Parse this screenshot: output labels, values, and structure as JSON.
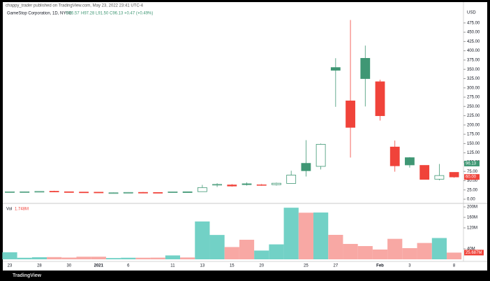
{
  "header": {
    "publisher": "chappy_trader published on TradingView.com, May 23, 2022 23:41 UTC-4"
  },
  "footer": {
    "brand": "TradingView"
  },
  "chart_data": {
    "type": "candlestick",
    "title": "GameStop Corporation, 1D, NYSE",
    "legend": {
      "o": "O96.57",
      "h": "H97.28",
      "l": "L91.50",
      "c": "C96.13",
      "change": "+0.47 (+0.49%)"
    },
    "currency": "USD",
    "categories": [
      "23",
      null,
      "28",
      null,
      "30",
      null,
      "2021",
      null,
      "6",
      null,
      null,
      "11",
      null,
      "13",
      null,
      "15",
      null,
      "20",
      null,
      null,
      "25",
      null,
      "27",
      null,
      null,
      "Feb",
      null,
      "3",
      null,
      null,
      "8"
    ],
    "open": [
      19.2,
      20.1,
      20.5,
      21.5,
      20.1,
      19.3,
      19.0,
      17.35,
      17.34,
      18.47,
      18.18,
      19.41,
      19.96,
      20.42,
      38.49,
      38.49,
      41.55,
      37.37,
      39.23,
      42.59,
      96.73,
      88.56,
      354.83,
      265.0,
      379.71,
      316.56,
      140.76,
      112.01,
      91.19,
      54.04,
      72.41
    ],
    "high": [
      20.6,
      20.8,
      21.3,
      22.9,
      20.6,
      19.7,
      19.1,
      18.08,
      18.98,
      19.45,
      18.3,
      20.65,
      20.4,
      38.65,
      43.06,
      40.75,
      45.52,
      41.19,
      44.75,
      76.76,
      159.18,
      150.0,
      380.0,
      483.0,
      413.98,
      322.0,
      158.0,
      113.4,
      91.5,
      95.0,
      72.66
    ],
    "low": [
      18.4,
      19.5,
      19.8,
      20.1,
      19.1,
      18.6,
      17.15,
      17.23,
      17.33,
      18.02,
      17.08,
      19.01,
      19.32,
      20.03,
      33.05,
      34.01,
      36.64,
      36.06,
      37.0,
      42.32,
      61.13,
      80.2,
      249.0,
      112.25,
      250.0,
      212.0,
      74.22,
      85.25,
      53.33,
      51.09,
      58.02
    ],
    "close": [
      20.1,
      20.15,
      20.99,
      20.4,
      19.38,
      18.84,
      17.25,
      17.37,
      18.36,
      18.08,
      17.69,
      19.94,
      19.95,
      31.4,
      39.91,
      35.5,
      39.36,
      39.12,
      43.03,
      65.01,
      76.79,
      147.98,
      347.51,
      193.6,
      325.0,
      225.0,
      90.0,
      92.41,
      53.5,
      63.77,
      60.0
    ],
    "volume": [
      27,
      6.0,
      7.9,
      8.6,
      6.8,
      10.0,
      10.0,
      4.96,
      6.06,
      6.13,
      6.48,
      14.9,
      7.06,
      144.5,
      93.0,
      46.9,
      74.7,
      33.5,
      57.1,
      197.0,
      177.9,
      178.6,
      93.4,
      58.8,
      50.6,
      37.4,
      78.2,
      42.7,
      62.4,
      81.3,
      25.687
    ],
    "up_color": "#3f9774",
    "down_color": "#f0433a",
    "volume_up_color": "#72d1c6",
    "volume_down_color": "#f8a8a4",
    "ylim": [
      -9.4,
      518
    ],
    "yticks": [
      {
        "value": 0,
        "label": "0.00"
      },
      {
        "value": 25,
        "label": "25.00"
      },
      {
        "value": 50,
        "label": "50.00"
      },
      {
        "value": 75,
        "label": "75.00"
      },
      {
        "value": 100,
        "label": "100.00"
      },
      {
        "value": 125,
        "label": "125.00"
      },
      {
        "value": 150,
        "label": "150.00"
      },
      {
        "value": 175,
        "label": "175.00"
      },
      {
        "value": 200,
        "label": "200.00"
      },
      {
        "value": 225,
        "label": "225.00"
      },
      {
        "value": 250,
        "label": "250.00"
      },
      {
        "value": 275,
        "label": "275.00"
      },
      {
        "value": 300,
        "label": "300.00"
      },
      {
        "value": 325,
        "label": "325.00"
      },
      {
        "value": 350,
        "label": "350.00"
      },
      {
        "value": 375,
        "label": "375.00"
      },
      {
        "value": 400,
        "label": "400.00"
      },
      {
        "value": 425,
        "label": "425.00"
      },
      {
        "value": 450,
        "label": "450.00"
      },
      {
        "value": 475,
        "label": "475.00"
      }
    ],
    "price_labels": [
      {
        "value": 96.13,
        "label": "96.13",
        "color": "#3f9774"
      },
      {
        "value": 60,
        "label": "60.00",
        "color": "#f0433a"
      }
    ],
    "volume_title": "Vol",
    "volume_value_label": "1.748M",
    "vlim": [
      0,
      210.7
    ],
    "vticks": [
      {
        "value": 40,
        "label": "40M"
      },
      {
        "value": 120,
        "label": "120M"
      },
      {
        "value": 160,
        "label": "160M"
      },
      {
        "value": 200,
        "label": "200M"
      }
    ],
    "volume_label": {
      "value": 25.687,
      "label": "25.687M"
    }
  }
}
